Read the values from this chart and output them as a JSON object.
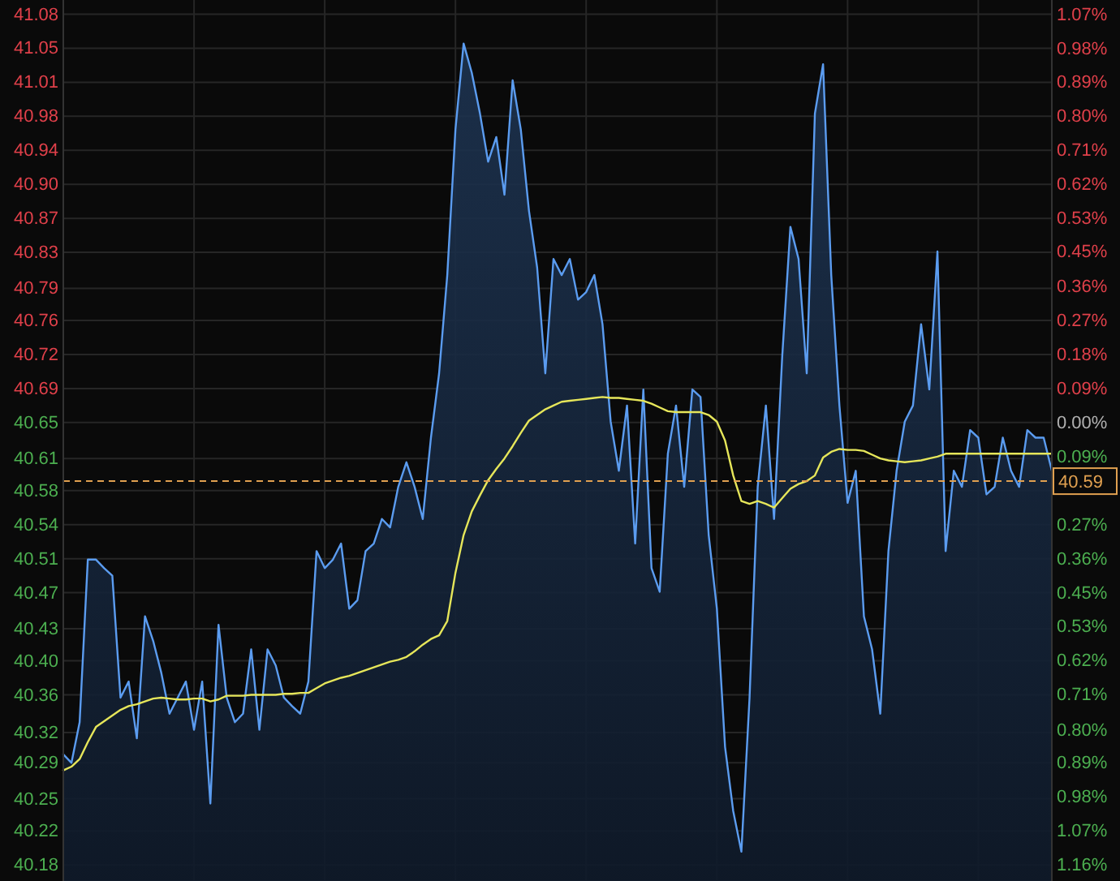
{
  "chart_data": {
    "type": "area",
    "grid": true,
    "categories": [
      null,
      null,
      null,
      null,
      null,
      null,
      null,
      null,
      null,
      null,
      null,
      null,
      null,
      null,
      null,
      null,
      null,
      null,
      null,
      null,
      null,
      null,
      null,
      null,
      null,
      null,
      null,
      null,
      null,
      null,
      null,
      null,
      null,
      null,
      null,
      null,
      null,
      null,
      null,
      null,
      null,
      null,
      null,
      null,
      null,
      null,
      null,
      null,
      null,
      null,
      null,
      null,
      null,
      null,
      null,
      null,
      null,
      null,
      null,
      null,
      null,
      null,
      null,
      null,
      null,
      null,
      null,
      null,
      null,
      null,
      null,
      null,
      null,
      null,
      null,
      null,
      null,
      null,
      null,
      null,
      null,
      null,
      null,
      null,
      null,
      null,
      null,
      null,
      null,
      null,
      null,
      null,
      null,
      null,
      null,
      null,
      null,
      null,
      null,
      null,
      null,
      null,
      null,
      null,
      null,
      null,
      null,
      null,
      null,
      null,
      null,
      null,
      null,
      null,
      null,
      null,
      null,
      null,
      null,
      null,
      null,
      null
    ],
    "ylim": [
      40.167,
      41.099
    ],
    "yticks": [
      {
        "value": 41.084,
        "label": "41.08"
      },
      {
        "value": 41.048,
        "label": "41.05"
      },
      {
        "value": 41.012,
        "label": "41.01"
      },
      {
        "value": 40.976,
        "label": "40.98"
      },
      {
        "value": 40.94,
        "label": "40.94"
      },
      {
        "value": 40.904,
        "label": "40.90"
      },
      {
        "value": 40.868,
        "label": "40.87"
      },
      {
        "value": 40.832,
        "label": "40.83"
      },
      {
        "value": 40.794,
        "label": "40.79"
      },
      {
        "value": 40.76,
        "label": "40.76"
      },
      {
        "value": 40.724,
        "label": "40.72"
      },
      {
        "value": 40.688,
        "label": "40.69"
      },
      {
        "value": 40.652,
        "label": "40.65"
      },
      {
        "value": 40.614,
        "label": "40.61"
      },
      {
        "value": 40.58,
        "label": "40.58"
      },
      {
        "value": 40.544,
        "label": "40.54"
      },
      {
        "value": 40.508,
        "label": "40.51"
      },
      {
        "value": 40.472,
        "label": "40.47"
      },
      {
        "value": 40.434,
        "label": "40.43"
      },
      {
        "value": 40.4,
        "label": "40.40"
      },
      {
        "value": 40.364,
        "label": "40.36"
      },
      {
        "value": 40.324,
        "label": "40.32"
      },
      {
        "value": 40.292,
        "label": "40.29"
      },
      {
        "value": 40.254,
        "label": "40.25"
      },
      {
        "value": 40.22,
        "label": "40.22"
      },
      {
        "value": 40.184,
        "label": "40.18"
      }
    ],
    "y2lim": [
      -1.198,
      1.104
    ],
    "y2ticks": [
      {
        "value": 1.067,
        "label": "1.07%"
      },
      {
        "value": 0.978,
        "label": "0.98%"
      },
      {
        "value": 0.889,
        "label": "0.89%"
      },
      {
        "value": 0.8,
        "label": "0.80%"
      },
      {
        "value": 0.711,
        "label": "0.71%"
      },
      {
        "value": 0.622,
        "label": "0.62%"
      },
      {
        "value": 0.533,
        "label": "0.53%"
      },
      {
        "value": 0.446,
        "label": "0.45%"
      },
      {
        "value": 0.356,
        "label": "0.36%"
      },
      {
        "value": 0.267,
        "label": "0.27%"
      },
      {
        "value": 0.178,
        "label": "0.18%"
      },
      {
        "value": 0.089,
        "label": "0.09%"
      },
      {
        "value": 0,
        "label": "0.00%"
      },
      {
        "value": -0.089,
        "label": "0.09%"
      },
      {
        "value": -0.178,
        "label": null
      },
      {
        "value": -0.267,
        "label": "0.27%"
      },
      {
        "value": -0.356,
        "label": "0.36%"
      },
      {
        "value": -0.446,
        "label": "0.45%"
      },
      {
        "value": -0.533,
        "label": "0.53%"
      },
      {
        "value": -0.622,
        "label": "0.62%"
      },
      {
        "value": -0.711,
        "label": "0.71%"
      },
      {
        "value": -0.804,
        "label": "0.80%"
      },
      {
        "value": -0.889,
        "label": "0.89%"
      },
      {
        "value": -0.978,
        "label": "0.98%"
      },
      {
        "value": -1.067,
        "label": "1.07%"
      },
      {
        "value": -1.156,
        "label": "1.16%"
      }
    ],
    "ref_lines": [
      {
        "axis": "y",
        "value": 40.59,
        "label": "40.59",
        "color": "#e0a050",
        "line_style": "dashed"
      }
    ],
    "series": [
      {
        "color": "#5b9cf0",
        "values": [
          40.301,
          40.292,
          40.335,
          40.507,
          40.507,
          40.498,
          40.49,
          40.361,
          40.378,
          40.318,
          40.447,
          40.421,
          40.387,
          40.344,
          40.361,
          40.378,
          40.327,
          40.378,
          40.249,
          40.438,
          40.361,
          40.335,
          40.344,
          40.412,
          40.327,
          40.412,
          40.395,
          40.361,
          40.352,
          40.344,
          40.378,
          40.516,
          40.498,
          40.507,
          40.524,
          40.455,
          40.464,
          40.516,
          40.524,
          40.55,
          40.541,
          40.584,
          40.61,
          40.584,
          40.55,
          40.636,
          40.704,
          40.808,
          40.962,
          41.053,
          41.022,
          40.979,
          40.928,
          40.954,
          40.893,
          41.014,
          40.962,
          40.876,
          40.816,
          40.704,
          40.825,
          40.808,
          40.825,
          40.782,
          40.79,
          40.808,
          40.756,
          40.653,
          40.601,
          40.67,
          40.524,
          40.687,
          40.498,
          40.473,
          40.619,
          40.67,
          40.584,
          40.687,
          40.679,
          40.533,
          40.455,
          40.309,
          40.241,
          40.198,
          40.361,
          40.584,
          40.67,
          40.55,
          40.722,
          40.859,
          40.825,
          40.704,
          40.979,
          41.031,
          40.808,
          40.67,
          40.567,
          40.601,
          40.447,
          40.412,
          40.344,
          40.516,
          40.601,
          40.653,
          40.67,
          40.756,
          40.687,
          40.833,
          40.516,
          40.601,
          40.584,
          40.644,
          40.636,
          40.576,
          40.584,
          40.636,
          40.601,
          40.584,
          40.644,
          40.636,
          40.636,
          40.601
        ]
      },
      {
        "type": "line",
        "color": "#e6e65a",
        "values": [
          40.284,
          40.288,
          40.296,
          40.314,
          40.33,
          40.336,
          40.342,
          40.348,
          40.352,
          40.354,
          40.357,
          40.36,
          40.361,
          40.36,
          40.359,
          40.359,
          40.36,
          40.36,
          40.357,
          40.359,
          40.363,
          40.363,
          40.363,
          40.364,
          40.364,
          40.364,
          40.364,
          40.365,
          40.365,
          40.366,
          40.366,
          40.371,
          40.376,
          40.379,
          40.382,
          40.384,
          40.387,
          40.39,
          40.393,
          40.396,
          40.399,
          40.401,
          40.404,
          40.41,
          40.417,
          40.423,
          40.427,
          40.442,
          40.493,
          40.533,
          40.558,
          40.575,
          40.591,
          40.603,
          40.614,
          40.627,
          40.641,
          40.654,
          40.66,
          40.666,
          40.67,
          40.674,
          40.675,
          40.676,
          40.677,
          40.678,
          40.679,
          40.678,
          40.678,
          40.677,
          40.676,
          40.675,
          40.672,
          40.668,
          40.664,
          40.663,
          40.663,
          40.663,
          40.663,
          40.66,
          40.653,
          40.633,
          40.596,
          40.569,
          40.566,
          40.569,
          40.566,
          40.562,
          40.572,
          40.582,
          40.587,
          40.59,
          40.596,
          40.615,
          40.621,
          40.624,
          40.623,
          40.623,
          40.622,
          40.618,
          40.614,
          40.612,
          40.611,
          40.61,
          40.611,
          40.612,
          40.614,
          40.616,
          40.619,
          40.619,
          40.619,
          40.619,
          40.619,
          40.619,
          40.619,
          40.619,
          40.619,
          40.619,
          40.619,
          40.619,
          40.619,
          40.619
        ]
      }
    ]
  }
}
